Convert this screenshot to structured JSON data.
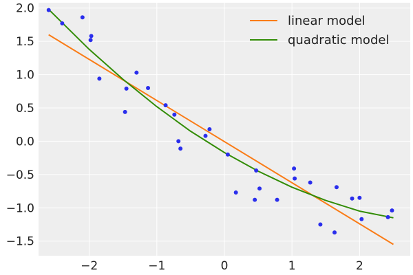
{
  "chart_data": {
    "type": "scatter",
    "xlim": [
      -2.75,
      2.75
    ],
    "ylim": [
      -1.72,
      2.08
    ],
    "xticks": [
      -2,
      -1,
      0,
      1,
      2
    ],
    "xtick_labels": [
      "−2",
      "−1",
      "0",
      "1",
      "2"
    ],
    "yticks": [
      -1.5,
      -1.0,
      -0.5,
      0.0,
      0.5,
      1.0,
      1.5,
      2.0
    ],
    "ytick_labels": [
      "−1.5",
      "−1.0",
      "−0.5",
      "0.0",
      "0.5",
      "1.0",
      "1.5",
      "2.0"
    ],
    "grid": true,
    "legend_position": "top-right",
    "points": {
      "color": "#2a2eec",
      "x": [
        -2.6,
        -2.4,
        -2.1,
        -1.98,
        -1.97,
        -1.85,
        -1.47,
        -1.45,
        -1.3,
        -1.13,
        -0.87,
        -0.74,
        -0.68,
        -0.65,
        -0.28,
        -0.22,
        0.05,
        0.17,
        0.45,
        0.47,
        0.52,
        0.78,
        1.03,
        1.04,
        1.27,
        1.42,
        1.63,
        1.66,
        1.89,
        2.0,
        2.03,
        2.42,
        2.48
      ],
      "y": [
        1.97,
        1.77,
        1.86,
        1.52,
        1.58,
        0.94,
        0.44,
        0.79,
        1.03,
        0.8,
        0.54,
        0.4,
        0.0,
        -0.11,
        0.08,
        0.18,
        -0.2,
        -0.77,
        -0.88,
        -0.44,
        -0.71,
        -0.88,
        -0.41,
        -0.56,
        -0.62,
        -1.25,
        -1.37,
        -0.69,
        -0.86,
        -0.85,
        -1.17,
        -1.14,
        -1.04
      ]
    },
    "series": [
      {
        "name": "linear model",
        "color": "#fa7c17",
        "x": [
          -2.6,
          2.5
        ],
        "y": [
          1.6,
          -1.55
        ]
      },
      {
        "name": "quadratic model",
        "color": "#328c06",
        "x": [
          -2.6,
          -2.0,
          -1.5,
          -1.0,
          -0.5,
          0.0,
          0.5,
          1.0,
          1.5,
          2.0,
          2.5
        ],
        "y": [
          1.98,
          1.38,
          0.93,
          0.52,
          0.15,
          -0.17,
          -0.45,
          -0.69,
          -0.89,
          -1.05,
          -1.15
        ]
      }
    ]
  }
}
